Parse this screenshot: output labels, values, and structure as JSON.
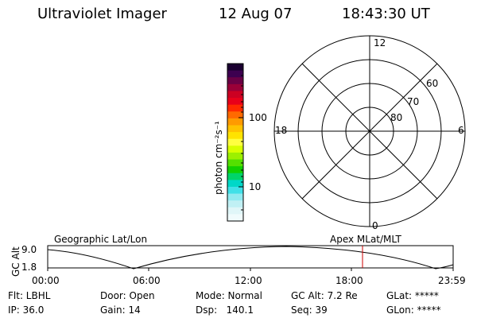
{
  "header": {
    "title": "Ultraviolet Imager",
    "date": "12 Aug 07",
    "time": "18:43:30 UT"
  },
  "colorbar": {
    "unit_label": "photon cm⁻²s⁻¹",
    "tick_100": "100",
    "tick_10": "10",
    "colors": [
      "#1a0030",
      "#3d0050",
      "#6a0045",
      "#9a0038",
      "#cc0022",
      "#e8001a",
      "#ff2a00",
      "#ff6a00",
      "#ff9a00",
      "#ffc200",
      "#ffe300",
      "#ffff40",
      "#d8ff00",
      "#9cf000",
      "#54e000",
      "#10d000",
      "#00d46a",
      "#00d8c8",
      "#40e0e8",
      "#90eaf0",
      "#c0f0f4",
      "#e0f6f8",
      "#f0fbfc"
    ]
  },
  "polar": {
    "label_top": "12",
    "label_left": "18",
    "label_right": "6",
    "label_bottom": "0",
    "lat_labels": [
      "60",
      "70",
      "80"
    ]
  },
  "strip": {
    "y_label": "GC Alt",
    "y_max": "9.0",
    "y_min": "1.8",
    "left_title": "Geographic Lat/Lon",
    "right_title": "Apex MLat/MLT",
    "marker_color": "#cc0000",
    "x_ticks": [
      "00:00",
      "06:00",
      "12:00",
      "18:00",
      "23:59"
    ]
  },
  "info": {
    "flt": "Flt: LBHL",
    "ip": "IP: 36.0",
    "door": "Door: Open",
    "gain": "Gain: 14",
    "mode": "Mode: Normal",
    "dsp": "Dsp:   140.1",
    "gcalt": "GC Alt: 7.2 Re",
    "seq": "Seq: 39",
    "glat": "GLat: *****",
    "glon": "GLon: *****"
  }
}
